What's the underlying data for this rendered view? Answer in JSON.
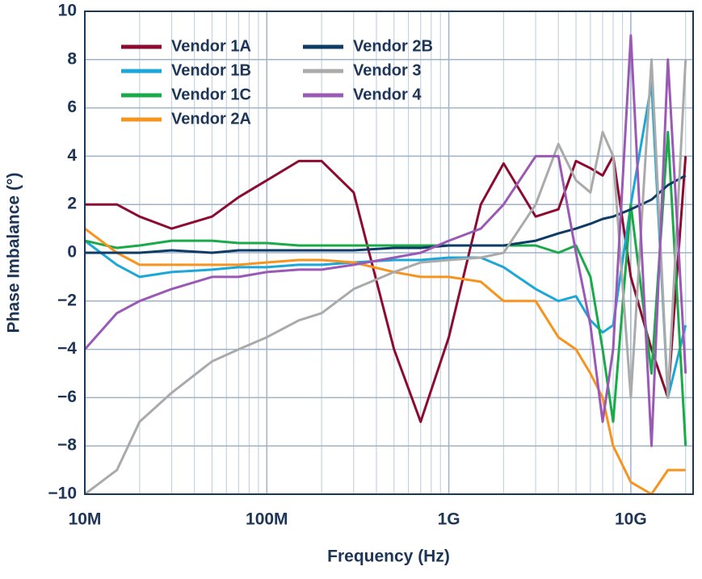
{
  "chart_data": {
    "type": "line",
    "x_label": "Frequency (Hz)",
    "y_label": "Phase Imbalance (°)",
    "log_x": true,
    "grid": true,
    "legend": "upper left",
    "xlim": [
      10000000.0,
      22000000000.0
    ],
    "xticks": [
      {
        "value": 10000000.0,
        "label": "10M"
      },
      {
        "value": 100000000.0,
        "label": "100M"
      },
      {
        "value": 1000000000.0,
        "label": "1G"
      },
      {
        "value": 10000000000.0,
        "label": "10G"
      }
    ],
    "ylim": [
      -10,
      10
    ],
    "yticks": [
      {
        "value": -10,
        "label": "−10"
      },
      {
        "value": -8,
        "label": "−8"
      },
      {
        "value": -6,
        "label": "−6"
      },
      {
        "value": -4,
        "label": "−4"
      },
      {
        "value": -2,
        "label": "−2"
      },
      0,
      2,
      4,
      6,
      8,
      10
    ],
    "x": [
      10000000.0,
      15000000.0,
      20000000.0,
      30000000.0,
      50000000.0,
      70000000.0,
      100000000.0,
      150000000.0,
      200000000.0,
      300000000.0,
      500000000.0,
      700000000.0,
      1000000000.0,
      1500000000.0,
      2000000000.0,
      3000000000.0,
      4000000000.0,
      5000000000.0,
      6000000000.0,
      7000000000.0,
      8000000000.0,
      10000000000.0,
      13000000000.0,
      16000000000.0,
      20000000000.0
    ],
    "series": [
      {
        "name": "Vendor 1A",
        "color": "#8c0b30",
        "values": [
          2,
          2,
          1.5,
          1,
          1.5,
          2.3,
          3,
          3.8,
          3.8,
          2.5,
          -4,
          -7,
          -3.5,
          2,
          3.7,
          1.5,
          1.8,
          3.8,
          3.5,
          3.2,
          4,
          -1,
          -4,
          -6,
          4
        ]
      },
      {
        "name": "Vendor 1B",
        "color": "#1ba8d8",
        "values": [
          0.5,
          -0.5,
          -1,
          -0.8,
          -0.7,
          -0.6,
          -0.6,
          -0.5,
          -0.5,
          -0.4,
          -0.3,
          -0.3,
          -0.2,
          -0.2,
          -0.6,
          -1.5,
          -2,
          -1.8,
          -2.8,
          -3.3,
          -3,
          2,
          7,
          -6,
          -3
        ]
      },
      {
        "name": "Vendor 1C",
        "color": "#1aaa4a",
        "values": [
          0.5,
          0.2,
          0.3,
          0.5,
          0.5,
          0.4,
          0.4,
          0.3,
          0.3,
          0.3,
          0.3,
          0.3,
          0.3,
          0.3,
          0.3,
          0.3,
          0,
          0.3,
          -1,
          -4,
          -7,
          2,
          -5,
          5,
          -8
        ]
      },
      {
        "name": "Vendor 2A",
        "color": "#f7941d",
        "values": [
          1,
          0,
          -0.5,
          -0.5,
          -0.5,
          -0.5,
          -0.4,
          -0.3,
          -0.3,
          -0.4,
          -0.8,
          -1,
          -1,
          -1.2,
          -2,
          -2,
          -3.5,
          -4,
          -5,
          -6,
          -8,
          -9.5,
          -10,
          -9,
          -9
        ]
      },
      {
        "name": "Vendor 2B",
        "color": "#0d3b66",
        "values": [
          0,
          0,
          0,
          0.1,
          0,
          0.1,
          0.1,
          0.1,
          0.1,
          0.1,
          0.2,
          0.2,
          0.3,
          0.3,
          0.3,
          0.5,
          0.8,
          1,
          1.2,
          1.4,
          1.5,
          1.8,
          2.2,
          2.8,
          3.2
        ]
      },
      {
        "name": "Vendor 3",
        "color": "#aaaaaa",
        "values": [
          -10,
          -9,
          -7,
          -5.8,
          -4.5,
          -4,
          -3.5,
          -2.8,
          -2.5,
          -1.5,
          -0.8,
          -0.4,
          -0.3,
          -0.2,
          0,
          2,
          4.5,
          3,
          2.5,
          5,
          4,
          -6,
          8,
          -6,
          8
        ]
      },
      {
        "name": "Vendor 4",
        "color": "#9b59b6",
        "values": [
          -4,
          -2.5,
          -2,
          -1.5,
          -1,
          -1,
          -0.8,
          -0.7,
          -0.7,
          -0.5,
          -0.2,
          0,
          0.5,
          1,
          2,
          4,
          4,
          0,
          -3,
          -7,
          -4,
          9,
          -8,
          8,
          -5
        ]
      }
    ]
  }
}
